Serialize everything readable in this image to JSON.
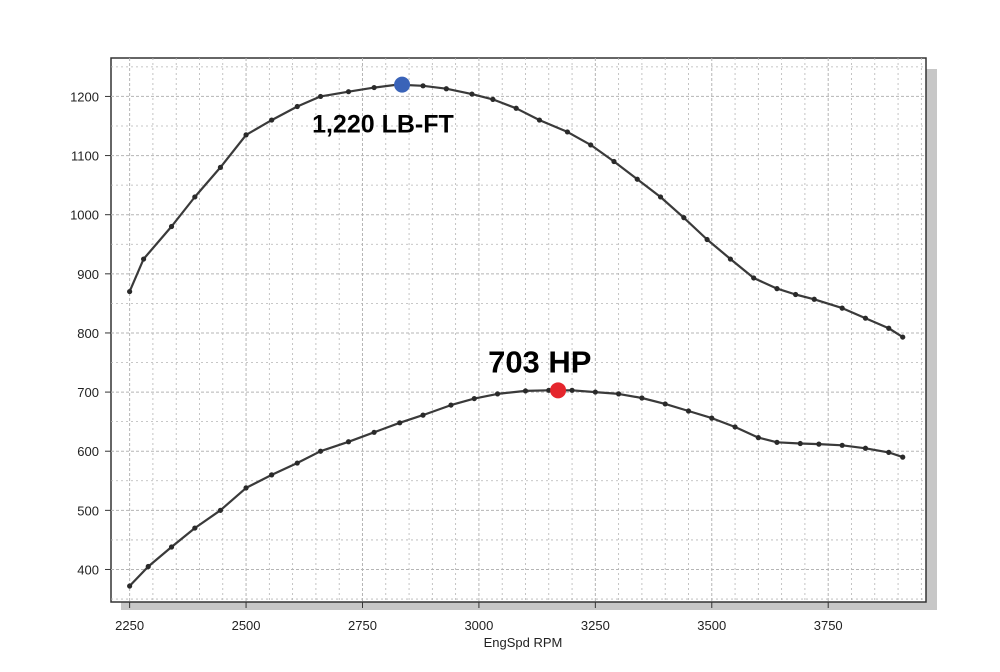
{
  "chart_data": {
    "type": "line",
    "xlabel": "EngSpd RPM",
    "ylabel": "",
    "title": "",
    "xlim": [
      2210,
      3960
    ],
    "ylim": [
      345,
      1265
    ],
    "xticks": [
      2250,
      2500,
      2750,
      3000,
      3250,
      3500,
      3750
    ],
    "yticks": [
      400,
      500,
      600,
      700,
      800,
      900,
      1000,
      1100,
      1200
    ],
    "grid": true,
    "colors": {
      "line": "#3a3a3a",
      "grid": "#b5b5b5",
      "shadow": "#c7c7c7",
      "torque_marker": "#3a63b8",
      "hp_marker": "#e5262d"
    },
    "series": [
      {
        "x": [
          2250,
          2280,
          2340,
          2390,
          2445,
          2500,
          2555,
          2610,
          2660,
          2720,
          2775,
          2825,
          2880,
          2930,
          2985,
          3030,
          3080,
          3130,
          3190,
          3240,
          3290,
          3340,
          3390,
          3440,
          3490,
          3540,
          3590,
          3640,
          3680,
          3720,
          3780,
          3830,
          3880,
          3910
        ],
        "y": [
          870,
          925,
          980,
          1030,
          1080,
          1135,
          1160,
          1183,
          1200,
          1208,
          1215,
          1220,
          1218,
          1213,
          1204,
          1195,
          1180,
          1160,
          1140,
          1118,
          1090,
          1060,
          1030,
          995,
          958,
          925,
          893,
          875,
          865,
          857,
          842,
          825,
          808,
          793
        ]
      },
      {
        "x": [
          2250,
          2290,
          2340,
          2390,
          2445,
          2500,
          2555,
          2610,
          2660,
          2720,
          2775,
          2830,
          2880,
          2940,
          2990,
          3040,
          3100,
          3150,
          3200,
          3250,
          3300,
          3350,
          3400,
          3450,
          3500,
          3550,
          3600,
          3640,
          3690,
          3730,
          3780,
          3830,
          3880,
          3910
        ],
        "y": [
          372,
          405,
          438,
          470,
          500,
          538,
          560,
          580,
          600,
          616,
          632,
          648,
          661,
          678,
          689,
          697,
          702,
          703,
          703,
          700,
          697,
          690,
          680,
          668,
          656,
          641,
          623,
          615,
          613,
          612,
          610,
          605,
          598,
          590
        ]
      }
    ],
    "annotations": [
      {
        "text": "1,220 LB-FT",
        "x": 2835,
        "y": 1220,
        "color": "#3a63b8"
      },
      {
        "text": "703 HP",
        "x": 3170,
        "y": 703,
        "color": "#e5262d"
      }
    ]
  }
}
